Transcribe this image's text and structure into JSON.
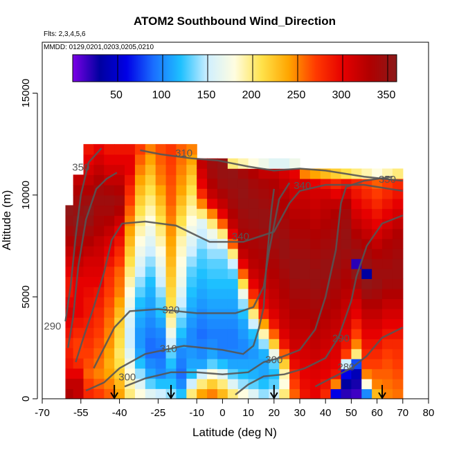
{
  "chart_data": {
    "type": "heatmap",
    "title": "ATOM2 Southbound Wind_Direction",
    "subtitle_flights": "Flts: 2,3,4,5,6",
    "subtitle_dates": "MMDD: 0129,0201,0203,0205,0210",
    "xlabel": "Latitude (deg N)",
    "ylabel": "Altitude (m)",
    "xlim": [
      -70,
      80
    ],
    "ylim": [
      0,
      17500
    ],
    "x_ticks": [
      -70,
      -55,
      -40,
      -25,
      -10,
      0,
      10,
      20,
      30,
      40,
      50,
      60,
      70,
      80
    ],
    "y_ticks": [
      0,
      5000,
      10000,
      15000
    ],
    "colorbar": {
      "range": [
        0,
        360
      ],
      "ticks": [
        50,
        100,
        150,
        200,
        250,
        300,
        350
      ],
      "colors": [
        "#7b00e6",
        "#0000a0",
        "#0000e6",
        "#1a6fff",
        "#1ec0ff",
        "#cfefff",
        "#fffde0",
        "#ffe24a",
        "#ffa500",
        "#ff3a00",
        "#e60000",
        "#b00000",
        "#8b1a1a"
      ]
    },
    "contour_labels": [
      {
        "label": "350",
        "lat": -55,
        "alt": 11200
      },
      {
        "label": "350",
        "lat": 64,
        "alt": 10600
      },
      {
        "label": "340",
        "lat": 31,
        "alt": 10300
      },
      {
        "label": "340",
        "lat": 7,
        "alt": 7800
      },
      {
        "label": "320",
        "lat": -20,
        "alt": 4200
      },
      {
        "label": "310",
        "lat": -21,
        "alt": 2300
      },
      {
        "label": "300",
        "lat": 20,
        "alt": 1750
      },
      {
        "label": "300",
        "lat": -37,
        "alt": 900
      },
      {
        "label": "290",
        "lat": -66,
        "alt": 3400
      },
      {
        "label": "290",
        "lat": 46,
        "alt": 2800
      },
      {
        "label": "280",
        "lat": 48,
        "alt": 1400
      },
      {
        "label": "310",
        "lat": -15,
        "alt": 11900
      }
    ],
    "flight_markers_lat": [
      -42,
      -20,
      20,
      62
    ],
    "columns": [
      {
        "lat": -59,
        "top": 9500,
        "values": [
          330,
          320,
          300,
          290,
          285,
          280,
          290,
          300,
          310,
          300,
          290,
          290,
          300,
          310,
          320,
          330,
          340,
          350,
          355
        ]
      },
      {
        "lat": -56,
        "top": 11000,
        "values": [
          320,
          320,
          300,
          280,
          270,
          270,
          280,
          290,
          300,
          300,
          300,
          300,
          310,
          320,
          330,
          340,
          350,
          355,
          350,
          340,
          330,
          320
        ]
      },
      {
        "lat": -52,
        "top": 12500,
        "values": [
          280,
          270,
          260,
          265,
          270,
          275,
          280,
          285,
          290,
          290,
          295,
          300,
          305,
          310,
          320,
          330,
          340,
          350,
          355,
          345,
          330,
          320,
          310,
          300,
          290
        ]
      },
      {
        "lat": -48,
        "top": 12500,
        "values": [
          270,
          260,
          250,
          255,
          260,
          265,
          270,
          275,
          280,
          285,
          290,
          300,
          305,
          310,
          315,
          320,
          330,
          335,
          340,
          345,
          340,
          330,
          320,
          310,
          300
        ]
      },
      {
        "lat": -44,
        "top": 12500,
        "values": [
          260,
          250,
          240,
          235,
          240,
          245,
          250,
          255,
          260,
          265,
          270,
          275,
          280,
          290,
          300,
          310,
          320,
          330,
          340,
          345,
          335,
          320,
          310,
          300,
          290
        ]
      },
      {
        "lat": -40,
        "top": 12500,
        "values": [
          240,
          230,
          220,
          210,
          205,
          210,
          215,
          220,
          230,
          240,
          250,
          255,
          260,
          270,
          280,
          290,
          300,
          315,
          330,
          340,
          330,
          320,
          310,
          300,
          290
        ]
      },
      {
        "lat": -36,
        "top": 12500,
        "values": [
          200,
          190,
          180,
          170,
          160,
          150,
          150,
          155,
          160,
          170,
          180,
          190,
          200,
          210,
          220,
          230,
          240,
          250,
          260,
          270,
          280,
          290,
          300,
          300,
          290
        ]
      },
      {
        "lat": -32,
        "top": 12500,
        "values": [
          180,
          160,
          140,
          120,
          110,
          105,
          105,
          110,
          115,
          120,
          130,
          140,
          150,
          160,
          170,
          180,
          190,
          200,
          210,
          220,
          230,
          240,
          250,
          260,
          270
        ]
      },
      {
        "lat": -28,
        "top": 12500,
        "values": [
          160,
          130,
          110,
          100,
          90,
          90,
          95,
          100,
          105,
          110,
          115,
          120,
          130,
          140,
          150,
          160,
          170,
          180,
          190,
          200,
          210,
          220,
          230,
          240,
          250
        ]
      },
      {
        "lat": -24,
        "top": 12500,
        "values": [
          150,
          120,
          100,
          95,
          90,
          95,
          100,
          110,
          120,
          130,
          140,
          150,
          160,
          170,
          180,
          190,
          200,
          210,
          220,
          230,
          240,
          250,
          255,
          260,
          265
        ]
      },
      {
        "lat": -20,
        "top": 12500,
        "values": [
          140,
          120,
          110,
          120,
          130,
          150,
          170,
          190,
          200,
          210,
          215,
          220,
          225,
          230,
          235,
          240,
          245,
          250,
          255,
          260,
          262,
          265,
          268,
          270,
          272
        ]
      },
      {
        "lat": -16,
        "top": 12500,
        "values": [
          120,
          100,
          90,
          95,
          100,
          110,
          120,
          130,
          140,
          150,
          160,
          170,
          175,
          180,
          185,
          190,
          200,
          210,
          220,
          230,
          240,
          245,
          250,
          255,
          260
        ]
      },
      {
        "lat": -12,
        "top": 12500,
        "values": [
          200,
          150,
          120,
          110,
          105,
          100,
          100,
          105,
          110,
          115,
          120,
          125,
          130,
          140,
          150,
          160,
          170,
          180,
          190,
          200,
          210,
          220,
          230,
          240,
          250
        ]
      },
      {
        "lat": -8,
        "top": 11800,
        "values": [
          240,
          200,
          150,
          110,
          100,
          95,
          90,
          95,
          100,
          105,
          110,
          115,
          120,
          125,
          130,
          140,
          150,
          160,
          200,
          250,
          280,
          300,
          310,
          320
        ]
      },
      {
        "lat": -4,
        "top": 11800,
        "values": [
          250,
          220,
          180,
          130,
          110,
          100,
          95,
          100,
          105,
          110,
          115,
          120,
          125,
          130,
          140,
          150,
          170,
          200,
          250,
          300,
          320,
          330,
          340,
          345
        ]
      },
      {
        "lat": 0,
        "top": 11800,
        "values": [
          230,
          200,
          160,
          120,
          100,
          95,
          95,
          100,
          105,
          110,
          115,
          120,
          125,
          130,
          140,
          160,
          200,
          260,
          300,
          320,
          335,
          345,
          350,
          352
        ]
      },
      {
        "lat": 4,
        "top": 11800,
        "values": [
          200,
          160,
          130,
          110,
          100,
          95,
          95,
          100,
          105,
          110,
          115,
          120,
          130,
          150,
          200,
          260,
          300,
          320,
          330,
          340,
          345,
          350,
          352,
          200
        ]
      },
      {
        "lat": 8,
        "top": 11800,
        "values": [
          180,
          140,
          120,
          110,
          100,
          100,
          105,
          110,
          120,
          140,
          170,
          210,
          260,
          300,
          320,
          330,
          335,
          340,
          345,
          350,
          352,
          350,
          340,
          190
        ]
      },
      {
        "lat": 12,
        "top": 11800,
        "values": [
          160,
          130,
          115,
          110,
          105,
          110,
          120,
          150,
          200,
          250,
          280,
          300,
          315,
          325,
          330,
          335,
          340,
          345,
          350,
          350,
          345,
          340,
          330,
          180
        ]
      },
      {
        "lat": 16,
        "top": 11800,
        "values": [
          140,
          120,
          110,
          110,
          115,
          140,
          190,
          240,
          280,
          300,
          310,
          320,
          325,
          330,
          335,
          340,
          345,
          350,
          350,
          345,
          340,
          335,
          320,
          170
        ]
      },
      {
        "lat": 20,
        "top": 11800,
        "values": [
          150,
          130,
          120,
          130,
          170,
          220,
          260,
          290,
          305,
          315,
          320,
          325,
          330,
          335,
          340,
          345,
          350,
          350,
          345,
          340,
          335,
          330,
          320,
          160
        ]
      },
      {
        "lat": 24,
        "top": 11800,
        "values": [
          200,
          180,
          190,
          220,
          260,
          290,
          305,
          315,
          320,
          325,
          330,
          335,
          340,
          345,
          350,
          350,
          345,
          340,
          335,
          330,
          325,
          320,
          310,
          160
        ]
      },
      {
        "lat": 28,
        "top": 11800,
        "values": [
          260,
          270,
          280,
          295,
          305,
          315,
          320,
          325,
          330,
          335,
          340,
          345,
          350,
          350,
          345,
          340,
          335,
          330,
          325,
          320,
          315,
          310,
          300,
          170
        ]
      },
      {
        "lat": 32,
        "top": 11300,
        "values": [
          290,
          295,
          300,
          305,
          310,
          315,
          320,
          325,
          330,
          335,
          340,
          345,
          350,
          350,
          345,
          340,
          335,
          330,
          325,
          320,
          315,
          310,
          250
        ]
      },
      {
        "lat": 36,
        "top": 11300,
        "values": [
          300,
          300,
          305,
          310,
          315,
          320,
          325,
          330,
          335,
          340,
          345,
          350,
          350,
          345,
          340,
          335,
          330,
          325,
          320,
          315,
          310,
          300,
          240
        ]
      },
      {
        "lat": 40,
        "top": 11300,
        "values": [
          280,
          290,
          300,
          305,
          310,
          315,
          320,
          325,
          330,
          335,
          340,
          345,
          350,
          350,
          345,
          340,
          335,
          330,
          325,
          320,
          310,
          290,
          230
        ]
      },
      {
        "lat": 44,
        "top": 11300,
        "values": [
          60,
          250,
          290,
          300,
          305,
          310,
          315,
          320,
          325,
          330,
          335,
          340,
          345,
          350,
          350,
          345,
          340,
          335,
          330,
          320,
          300,
          280,
          220
        ]
      },
      {
        "lat": 48,
        "top": 11300,
        "values": [
          20,
          30,
          60,
          150,
          270,
          290,
          300,
          310,
          315,
          320,
          325,
          330,
          335,
          340,
          345,
          350,
          350,
          345,
          340,
          330,
          310,
          290,
          210
        ]
      },
      {
        "lat": 52,
        "top": 11300,
        "values": [
          15,
          25,
          40,
          80,
          200,
          250,
          270,
          285,
          300,
          310,
          320,
          340,
          355,
          20,
          350,
          340,
          330,
          320,
          310,
          300,
          290,
          280,
          200
        ]
      },
      {
        "lat": 56,
        "top": 11300,
        "values": [
          100,
          180,
          250,
          270,
          280,
          290,
          300,
          310,
          320,
          330,
          345,
          355,
          30,
          350,
          340,
          330,
          320,
          310,
          300,
          290,
          280,
          270,
          190
        ]
      },
      {
        "lat": 60,
        "top": 11300,
        "values": [
          230,
          250,
          260,
          270,
          280,
          290,
          300,
          310,
          320,
          330,
          340,
          350,
          345,
          340,
          330,
          320,
          310,
          300,
          290,
          280,
          270,
          260,
          180
        ]
      },
      {
        "lat": 64,
        "top": 11300,
        "values": [
          250,
          255,
          260,
          265,
          270,
          280,
          290,
          300,
          310,
          320,
          330,
          340,
          345,
          340,
          335,
          330,
          320,
          310,
          300,
          290,
          280,
          270,
          190
        ]
      },
      {
        "lat": 68,
        "top": 11300,
        "values": [
          255,
          260,
          265,
          270,
          275,
          280,
          290,
          300,
          310,
          320,
          330,
          340,
          345,
          345,
          340,
          335,
          330,
          320,
          310,
          300,
          290,
          280,
          200
        ]
      }
    ]
  }
}
